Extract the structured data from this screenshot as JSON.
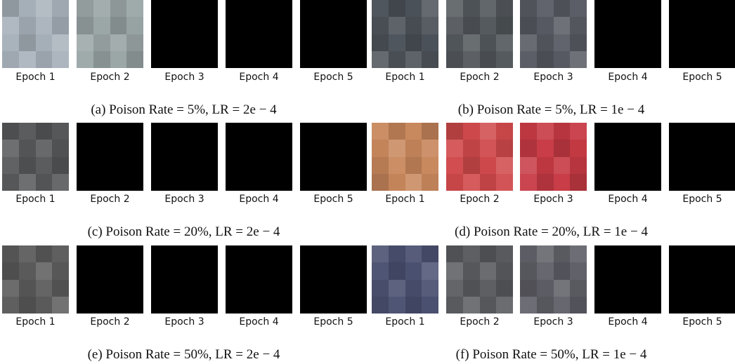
{
  "panels": [
    {
      "caption": "(a) Poison Rate = 5%, LR = 2e − 4",
      "epochs": [
        "Epoch 1",
        "Epoch 2",
        "Epoch 3",
        "Epoch 4",
        "Epoch 5"
      ]
    },
    {
      "caption": "(b) Poison Rate = 5%, LR = 1e − 4",
      "epochs": [
        "Epoch 1",
        "Epoch 2",
        "Epoch 3",
        "Epoch 4",
        "Epoch 5"
      ]
    },
    {
      "caption": "(c) Poison Rate = 20%, LR = 2e − 4",
      "epochs": [
        "Epoch 1",
        "Epoch 2",
        "Epoch 3",
        "Epoch 4",
        "Epoch 5"
      ]
    },
    {
      "caption": "(d) Poison Rate = 20%, LR = 1e − 4",
      "epochs": [
        "Epoch 1",
        "Epoch 2",
        "Epoch 3",
        "Epoch 4",
        "Epoch 5"
      ]
    },
    {
      "caption": "(e) Poison Rate = 50%, LR = 2e − 4",
      "epochs": [
        "Epoch 1",
        "Epoch 2",
        "Epoch 3",
        "Epoch 4",
        "Epoch 5"
      ]
    },
    {
      "caption": "(f) Poison Rate = 50%, LR = 1e − 4",
      "epochs": [
        "Epoch 1",
        "Epoch 2",
        "Epoch 3",
        "Epoch 4",
        "Epoch 5"
      ]
    }
  ]
}
